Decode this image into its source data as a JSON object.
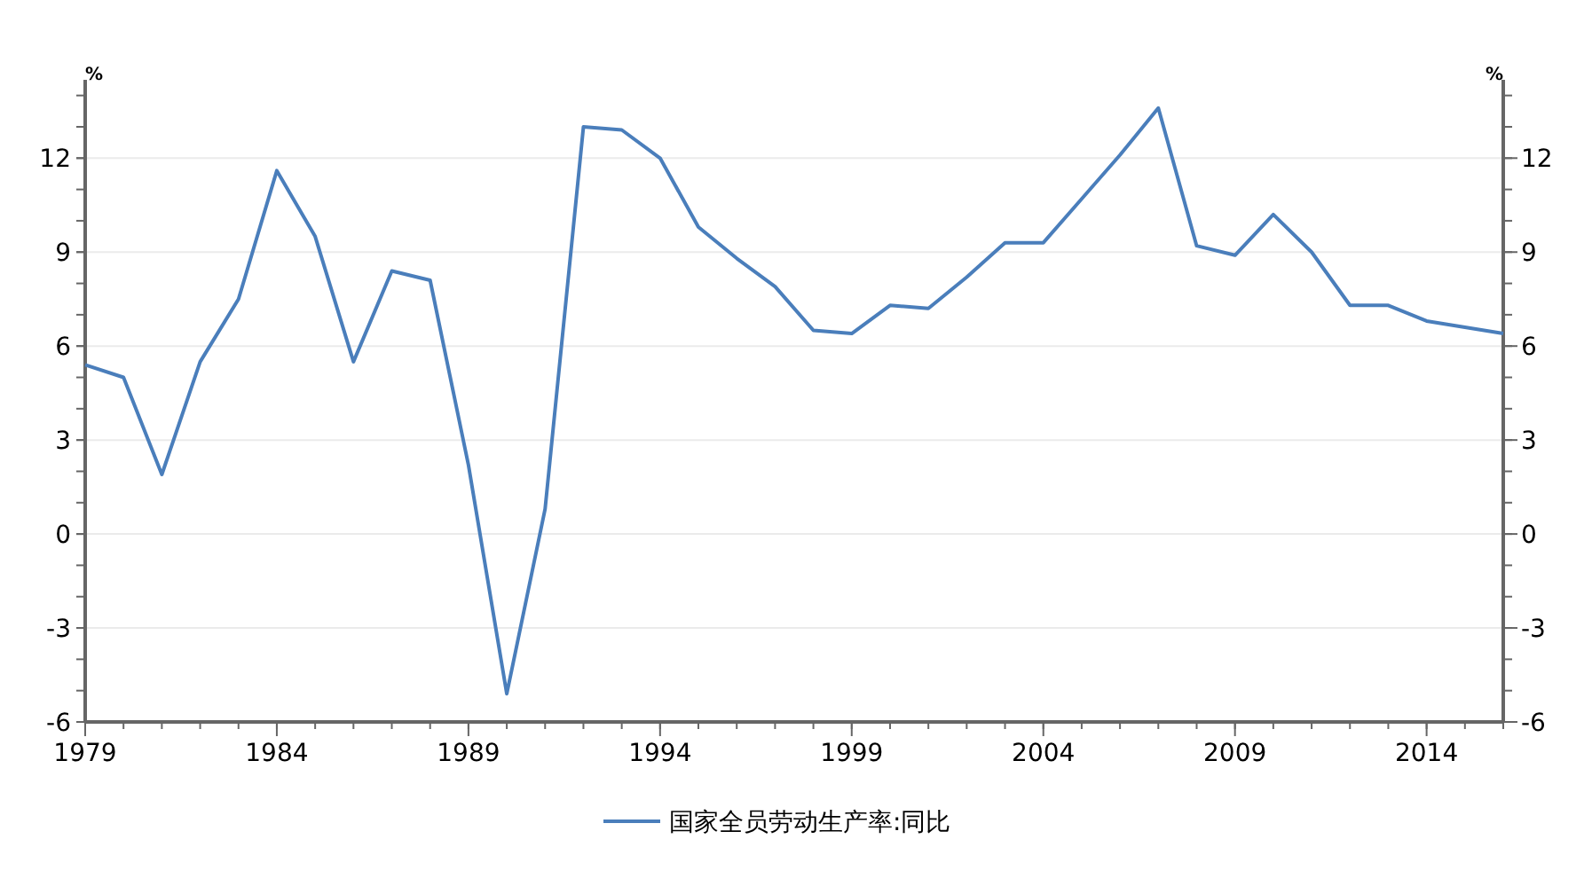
{
  "chart_data": {
    "type": "line",
    "ylabel": "%",
    "y2label": "%",
    "x": [
      1979,
      1980,
      1981,
      1982,
      1983,
      1984,
      1985,
      1986,
      1987,
      1988,
      1989,
      1990,
      1991,
      1992,
      1993,
      1994,
      1995,
      1996,
      1997,
      1998,
      1999,
      2000,
      2001,
      2002,
      2003,
      2004,
      2005,
      2006,
      2007,
      2008,
      2009,
      2010,
      2011,
      2012,
      2013,
      2014,
      2015,
      2016
    ],
    "series": [
      {
        "name": "国家全员劳动生产率:同比",
        "color": "#4a7ebb",
        "values": [
          5.4,
          5.0,
          1.9,
          5.5,
          7.5,
          11.6,
          9.5,
          5.5,
          8.4,
          8.1,
          2.2,
          -5.1,
          0.8,
          13.0,
          12.9,
          12.0,
          9.8,
          8.8,
          7.9,
          6.5,
          6.4,
          7.3,
          7.2,
          8.2,
          9.3,
          9.3,
          10.7,
          12.1,
          13.6,
          9.2,
          8.9,
          10.2,
          9.0,
          7.3,
          7.3,
          6.8,
          6.6,
          6.4
        ]
      }
    ],
    "xlim": [
      1979,
      2016
    ],
    "xticks": [
      1979,
      1984,
      1989,
      1994,
      1999,
      2004,
      2009,
      2014
    ],
    "ylim": [
      -6,
      14.5
    ],
    "yticks": [
      -6,
      -3,
      0,
      3,
      6,
      9,
      12
    ],
    "y2lim": [
      -6,
      14.5
    ],
    "y2ticks": [
      -6,
      -3,
      0,
      3,
      6,
      9,
      12
    ],
    "grid": "y",
    "legend": "bottom",
    "marker": "none",
    "line_style": "solid"
  }
}
